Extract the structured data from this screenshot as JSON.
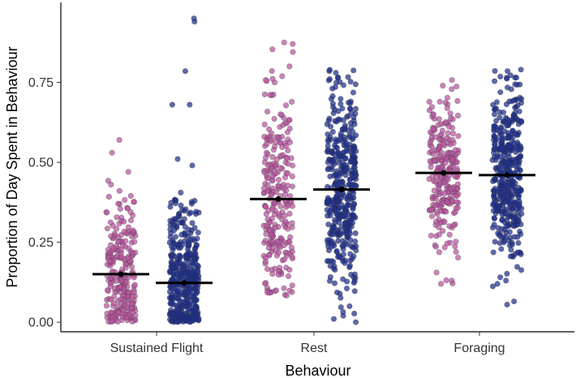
{
  "chart_data": {
    "type": "scatter",
    "title": "",
    "xlabel": "Behaviour",
    "ylabel": "Proportion of Day Spent in Behaviour",
    "ylim": [
      -0.03,
      1.0
    ],
    "y_ticks": [
      0.0,
      0.25,
      0.5,
      0.75
    ],
    "y_tick_labels": [
      "0.00",
      "0.25",
      "0.50",
      "0.75"
    ],
    "grid": false,
    "legend": "none",
    "categories": [
      "Sustained Flight",
      "Rest",
      "Foraging"
    ],
    "series": [
      {
        "color": "#b7559e",
        "stats": {
          "Sustained Flight": {
            "mean": 0.15,
            "min": 0.0,
            "max": 0.57,
            "q1": 0.06,
            "q3": 0.22,
            "n": 260
          },
          "Rest": {
            "mean": 0.385,
            "min": 0.08,
            "max": 0.875,
            "q1": 0.27,
            "q3": 0.5,
            "n": 260
          },
          "Foraging": {
            "mean": 0.467,
            "min": 0.12,
            "max": 0.77,
            "q1": 0.39,
            "q3": 0.55,
            "n": 260
          }
        },
        "outliers": {
          "Sustained Flight": [
            0.57,
            0.53
          ],
          "Rest": [
            0.875,
            0.8
          ],
          "Foraging": [
            0.13,
            0.12
          ]
        }
      },
      {
        "color": "#1f2f8c",
        "stats": {
          "Sustained Flight": {
            "mean": 0.123,
            "min": 0.0,
            "max": 0.95,
            "q1": 0.03,
            "q3": 0.19,
            "n": 420
          },
          "Rest": {
            "mean": 0.415,
            "min": 0.0,
            "max": 0.79,
            "q1": 0.31,
            "q3": 0.52,
            "n": 420
          },
          "Foraging": {
            "mean": 0.46,
            "min": 0.055,
            "max": 0.79,
            "q1": 0.37,
            "q3": 0.55,
            "n": 420
          }
        },
        "outliers": {
          "Sustained Flight": [
            0.95,
            0.94,
            0.785,
            0.68,
            0.68,
            0.51,
            0.49
          ],
          "Rest": [
            0.05,
            0.01,
            0.0,
            0.785,
            0.78
          ],
          "Foraging": [
            0.13,
            0.12,
            0.065,
            0.055,
            0.79,
            0.785
          ]
        }
      }
    ]
  }
}
